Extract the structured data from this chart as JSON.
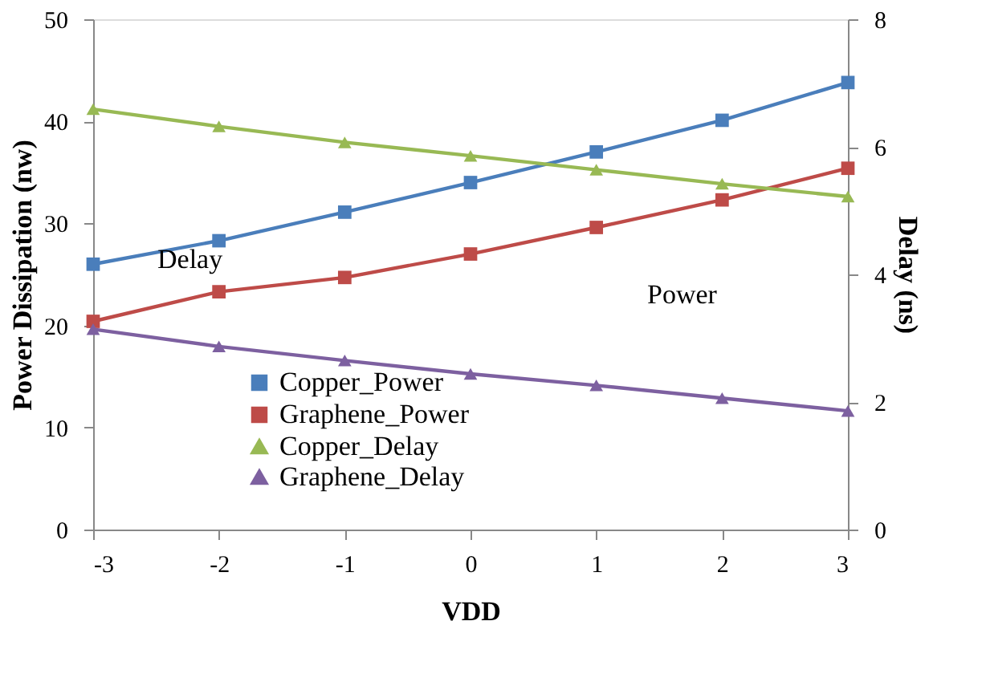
{
  "chart_data": {
    "type": "line",
    "xlabel": "VDD",
    "ylabel": "Power Dissipation (nw)",
    "y2label": "Delay (ns)",
    "x": [
      -3,
      -2,
      -1,
      0,
      1,
      2,
      3
    ],
    "series": [
      {
        "name": "Copper_Power",
        "color": "#4a7ebb",
        "marker": "square",
        "values": [
          26.0,
          28.3,
          31.1,
          34.0,
          37.0,
          40.1,
          43.8
        ]
      },
      {
        "name": "Graphene_Power",
        "color": "#be4b48",
        "marker": "square",
        "values": [
          20.4,
          23.3,
          24.7,
          27.0,
          29.6,
          32.3,
          35.4
        ]
      },
      {
        "name": "Copper_Delay",
        "color": "#98b954",
        "marker": "triangle",
        "axis": "y2",
        "values": [
          6.59,
          6.32,
          6.07,
          5.86,
          5.64,
          5.42,
          5.22
        ]
      },
      {
        "name": "Graphene_Delay",
        "color": "#7d60a0",
        "marker": "triangle",
        "axis": "y2",
        "values": [
          3.14,
          2.87,
          2.65,
          2.44,
          2.26,
          2.06,
          1.86
        ]
      }
    ],
    "xlim": [
      -3,
      3
    ],
    "xticks": [
      -3,
      -2,
      -1,
      0,
      1,
      2,
      3
    ],
    "ylim": [
      0,
      50
    ],
    "yticks": [
      0,
      10,
      20,
      30,
      40,
      50
    ],
    "y2lim": [
      0,
      8
    ],
    "y2ticks": [
      0,
      2,
      4,
      6,
      8
    ],
    "annotations": [
      "Delay",
      "Power"
    ],
    "legend": "bottom",
    "grid": false,
    "line_style": "solid"
  }
}
